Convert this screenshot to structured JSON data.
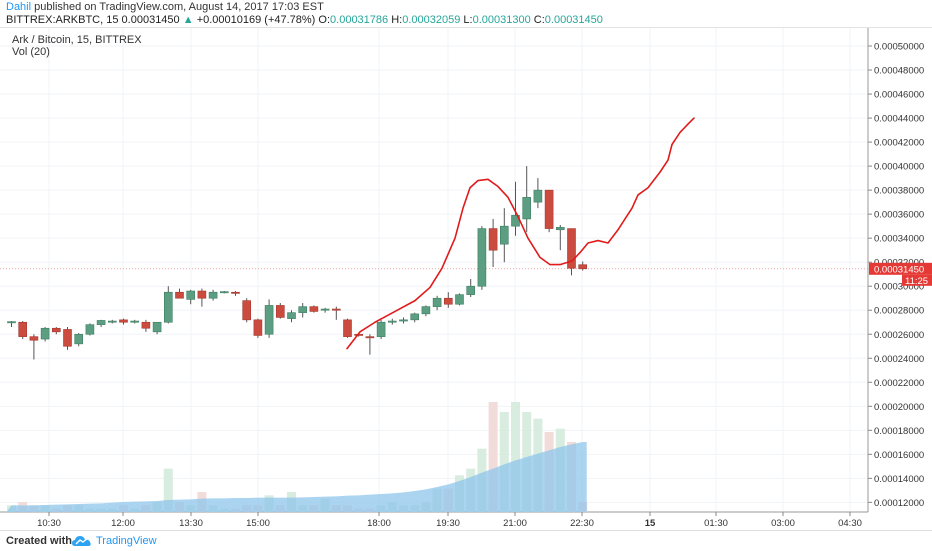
{
  "header": {
    "author": "Dahil",
    "published_text": "published on TradingView.com, August 14, 2017 17:03 EST",
    "symbol": "BITTREX:ARKBTC, 15",
    "price": "0.00031450",
    "change_arrow": "▲",
    "change": "+0.00010169 (+47.78%)",
    "o_label": "O:",
    "o_value": "0.00031786",
    "h_label": "H:",
    "h_value": "0.00032059",
    "l_label": "L:",
    "l_value": "0.00031300",
    "c_label": "C:",
    "c_value": "0.00031450"
  },
  "legend": {
    "series": "Ark / Bitcoin, 15, BITTREX",
    "volume": "Vol (20)"
  },
  "price_tag": {
    "price": "0.00031450",
    "countdown": "11:25"
  },
  "footer": {
    "created": "Created with",
    "brand": "TradingView"
  },
  "colors": {
    "up": "#5b9e82",
    "down": "#cc4b3f",
    "drawing": "#e01b1b",
    "vol_up": "#d8ecdf",
    "vol_down": "#f2dcd9",
    "vol_ma": "#8fc6eb"
  },
  "chart_data": {
    "type": "candlestick",
    "title": "Ark / Bitcoin, 15, BITTREX",
    "y_ticks": [
      "0.00050000",
      "0.00048000",
      "0.00046000",
      "0.00044000",
      "0.00042000",
      "0.00040000",
      "0.00038000",
      "0.00036000",
      "0.00034000",
      "0.00032000",
      "0.00030000",
      "0.00028000",
      "0.00026000",
      "0.00024000",
      "0.00022000",
      "0.00020000",
      "0.00018000",
      "0.00016000",
      "0.00014000",
      "0.00012000"
    ],
    "x_ticks": [
      "10:30",
      "12:00",
      "13:30",
      "15:00",
      "18:00",
      "19:30",
      "21:00",
      "22:30",
      "15",
      "01:30",
      "03:00",
      "04:30"
    ],
    "ylim": [
      0.000112,
      0.000515
    ],
    "candles": [
      {
        "o": 0.00027,
        "h": 0.000271,
        "l": 0.000266,
        "c": 0.0002705
      },
      {
        "o": 0.00027,
        "h": 0.000271,
        "l": 0.000256,
        "c": 0.000258
      },
      {
        "o": 0.000258,
        "h": 0.00026,
        "l": 0.000239,
        "c": 0.000255
      },
      {
        "o": 0.000256,
        "h": 0.000266,
        "l": 0.000254,
        "c": 0.000265
      },
      {
        "o": 0.000265,
        "h": 0.000266,
        "l": 0.00026,
        "c": 0.000262
      },
      {
        "o": 0.000264,
        "h": 0.000266,
        "l": 0.000247,
        "c": 0.00025
      },
      {
        "o": 0.000252,
        "h": 0.000261,
        "l": 0.00025,
        "c": 0.00026
      },
      {
        "o": 0.00026,
        "h": 0.000269,
        "l": 0.000259,
        "c": 0.000268
      },
      {
        "o": 0.000268,
        "h": 0.000272,
        "l": 0.000266,
        "c": 0.0002715
      },
      {
        "o": 0.00027,
        "h": 0.000272,
        "l": 0.000269,
        "c": 0.000271
      },
      {
        "o": 0.000272,
        "h": 0.000273,
        "l": 0.000268,
        "c": 0.00027
      },
      {
        "o": 0.00027,
        "h": 0.000272,
        "l": 0.000269,
        "c": 0.000271
      },
      {
        "o": 0.00027,
        "h": 0.000272,
        "l": 0.000262,
        "c": 0.000265
      },
      {
        "o": 0.000262,
        "h": 0.00027,
        "l": 0.00026,
        "c": 0.00027
      },
      {
        "o": 0.00027,
        "h": 0.0003,
        "l": 0.000269,
        "c": 0.000295
      },
      {
        "o": 0.000295,
        "h": 0.000298,
        "l": 0.00029,
        "c": 0.00029
      },
      {
        "o": 0.000289,
        "h": 0.000297,
        "l": 0.000285,
        "c": 0.000296
      },
      {
        "o": 0.000296,
        "h": 0.000298,
        "l": 0.000283,
        "c": 0.00029
      },
      {
        "o": 0.00029,
        "h": 0.000297,
        "l": 0.000288,
        "c": 0.000295
      },
      {
        "o": 0.000295,
        "h": 0.000296,
        "l": 0.000294,
        "c": 0.0002955
      },
      {
        "o": 0.000295,
        "h": 0.000296,
        "l": 0.000292,
        "c": 0.0002945
      },
      {
        "o": 0.000288,
        "h": 0.00029,
        "l": 0.00027,
        "c": 0.000272
      },
      {
        "o": 0.000272,
        "h": 0.000273,
        "l": 0.000257,
        "c": 0.000259
      },
      {
        "o": 0.00026,
        "h": 0.000289,
        "l": 0.000257,
        "c": 0.000284
      },
      {
        "o": 0.000284,
        "h": 0.000286,
        "l": 0.000273,
        "c": 0.000274
      },
      {
        "o": 0.000273,
        "h": 0.00028,
        "l": 0.00027,
        "c": 0.000278
      },
      {
        "o": 0.000278,
        "h": 0.000286,
        "l": 0.000274,
        "c": 0.000283
      },
      {
        "o": 0.000283,
        "h": 0.000284,
        "l": 0.000278,
        "c": 0.000279
      },
      {
        "o": 0.00028,
        "h": 0.000282,
        "l": 0.000278,
        "c": 0.000281
      },
      {
        "o": 0.000281,
        "h": 0.000283,
        "l": 0.000272,
        "c": 0.00028
      },
      {
        "o": 0.000272,
        "h": 0.000273,
        "l": 0.000257,
        "c": 0.000258
      },
      {
        "o": 0.00026,
        "h": 0.000261,
        "l": 0.000258,
        "c": 0.0002595
      },
      {
        "o": 0.000258,
        "h": 0.00026,
        "l": 0.000243,
        "c": 0.000257
      },
      {
        "o": 0.000258,
        "h": 0.000272,
        "l": 0.000256,
        "c": 0.00027
      },
      {
        "o": 0.00027,
        "h": 0.000273,
        "l": 0.000268,
        "c": 0.000271
      },
      {
        "o": 0.000271,
        "h": 0.000274,
        "l": 0.000269,
        "c": 0.000272
      },
      {
        "o": 0.000272,
        "h": 0.000278,
        "l": 0.00027,
        "c": 0.000277
      },
      {
        "o": 0.000277,
        "h": 0.000284,
        "l": 0.000275,
        "c": 0.000283
      },
      {
        "o": 0.000283,
        "h": 0.000292,
        "l": 0.00028,
        "c": 0.00029
      },
      {
        "o": 0.00029,
        "h": 0.000295,
        "l": 0.000282,
        "c": 0.000285
      },
      {
        "o": 0.000285,
        "h": 0.000294,
        "l": 0.000284,
        "c": 0.000293
      },
      {
        "o": 0.000293,
        "h": 0.000306,
        "l": 0.000291,
        "c": 0.0003
      },
      {
        "o": 0.0003,
        "h": 0.00035,
        "l": 0.000297,
        "c": 0.000348
      },
      {
        "o": 0.000348,
        "h": 0.000356,
        "l": 0.000316,
        "c": 0.00033
      },
      {
        "o": 0.000335,
        "h": 0.000365,
        "l": 0.00032,
        "c": 0.00035
      },
      {
        "o": 0.00035,
        "h": 0.000387,
        "l": 0.000342,
        "c": 0.000359
      },
      {
        "o": 0.000356,
        "h": 0.0004,
        "l": 0.000345,
        "c": 0.000374
      },
      {
        "o": 0.00037,
        "h": 0.00039,
        "l": 0.000365,
        "c": 0.00038
      },
      {
        "o": 0.00038,
        "h": 0.00038,
        "l": 0.000345,
        "c": 0.000348
      },
      {
        "o": 0.000347,
        "h": 0.000351,
        "l": 0.00033,
        "c": 0.000349
      },
      {
        "o": 0.000348,
        "h": 0.000348,
        "l": 0.000309,
        "c": 0.000315
      },
      {
        "o": 0.0003179,
        "h": 0.0003206,
        "l": 0.000313,
        "c": 0.0003145
      }
    ],
    "volume": [
      2,
      3,
      2,
      2,
      1,
      2,
      2,
      1,
      1,
      1,
      2,
      1,
      2,
      3,
      13,
      3,
      2,
      6,
      2,
      1,
      1,
      2,
      2,
      5,
      2,
      6,
      2,
      2,
      4,
      2,
      2,
      1,
      1,
      2,
      3,
      2,
      2,
      3,
      7,
      7,
      11,
      13,
      19,
      33,
      30,
      33,
      30,
      28,
      24,
      25,
      21,
      3
    ],
    "volume_ma": [
      2,
      2,
      2,
      2.1,
      2.2,
      2.3,
      2.4,
      2.5,
      2.6,
      2.8,
      3,
      3.1,
      3.2,
      3.3,
      3.6,
      3.7,
      3.8,
      4,
      4.1,
      4.1,
      4.2,
      4.2,
      4.3,
      4.3,
      4.3,
      4.3,
      4.4,
      4.5,
      4.6,
      4.7,
      4.9,
      5,
      5.2,
      5.4,
      5.6,
      5.9,
      6.3,
      6.8,
      7.5,
      8.3,
      9.3,
      10.5,
      11.8,
      13,
      14.3,
      15.5,
      16.5,
      17.5,
      18.5,
      19.5,
      20.3,
      21
    ]
  }
}
